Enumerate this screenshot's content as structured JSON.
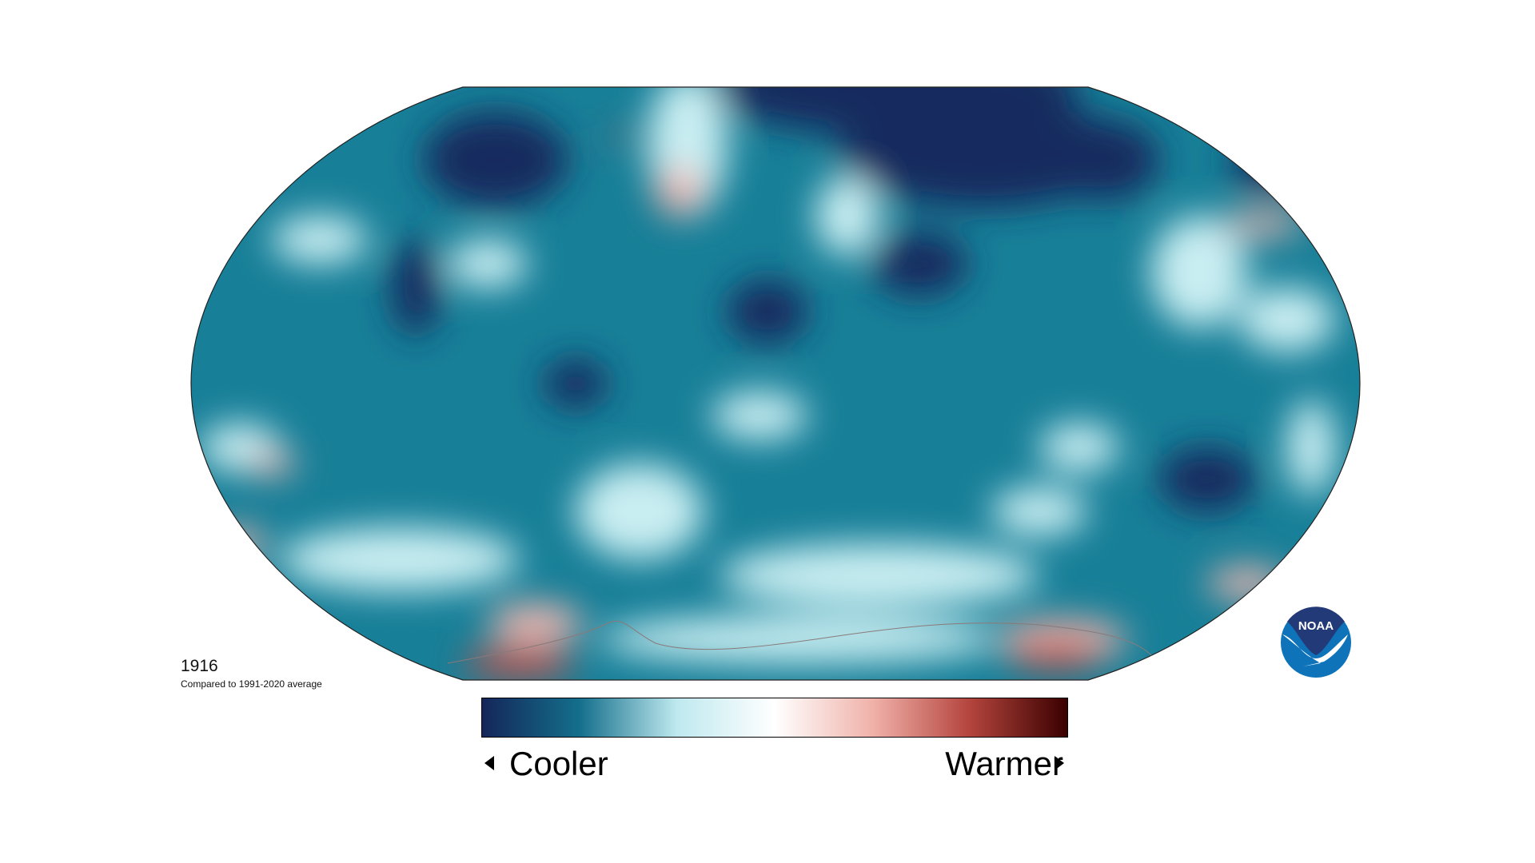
{
  "caption": {
    "year": "1916",
    "subtitle": "Compared to 1991-2020 average"
  },
  "legend": {
    "cooler_label": "Cooler",
    "warmer_label": "Warmer",
    "colors": [
      "#14265a",
      "#146f8c",
      "#bfe9ef",
      "#ffffff",
      "#f0b2aa",
      "#b4443d",
      "#3a0000"
    ]
  },
  "logo": {
    "text": "NOAA",
    "colors": {
      "top": "#233a78",
      "bottom": "#0f73ba"
    }
  },
  "map": {
    "projection": "Robinson",
    "base_color": "#177f98",
    "colors": {
      "cold": "#14295e",
      "mid": "#177f98",
      "light": "#c9eef2",
      "warm": "#f2b7b0",
      "hot": "#c0504a",
      "outline": "#222222",
      "coastline": "#8a7a7a"
    }
  }
}
